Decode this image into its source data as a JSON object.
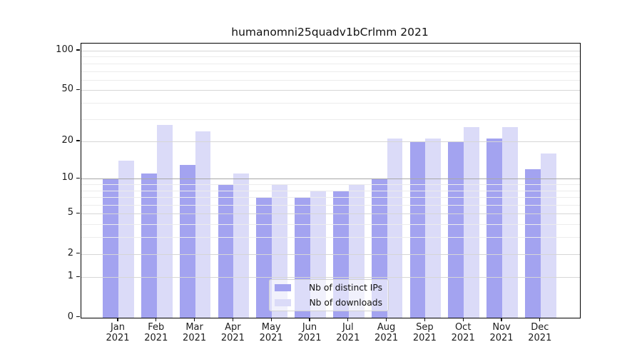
{
  "chart_data": {
    "type": "bar",
    "title": "humanomni25quadv1bCrlmm 2021",
    "categories": [
      "Jan 2021",
      "Feb 2021",
      "Mar 2021",
      "Apr 2021",
      "May 2021",
      "Jun 2021",
      "Jul 2021",
      "Aug 2021",
      "Sep 2021",
      "Oct 2021",
      "Nov 2021",
      "Dec 2021"
    ],
    "month_labels": [
      "Jan",
      "Feb",
      "Mar",
      "Apr",
      "May",
      "Jun",
      "Jul",
      "Aug",
      "Sep",
      "Oct",
      "Nov",
      "Dec"
    ],
    "year_label": "2021",
    "series": [
      {
        "name": "Nb of distinct IPs",
        "color": "#a3a3f0",
        "values": [
          10,
          11,
          13,
          9,
          7,
          7,
          8,
          10,
          20,
          20,
          21,
          12
        ]
      },
      {
        "name": "Nb of downloads",
        "color": "#dbdbf8",
        "values": [
          14,
          27,
          24,
          11,
          9,
          8,
          9,
          21,
          21,
          26,
          26,
          16
        ]
      }
    ],
    "yscale": "log1p",
    "yticks": [
      0,
      1,
      2,
      5,
      10,
      20,
      50,
      100
    ],
    "yticks_minor": [
      3,
      4,
      6,
      7,
      8,
      9,
      30,
      40,
      60,
      70,
      80,
      90
    ],
    "ylim": [
      0,
      113
    ],
    "grid": true,
    "legend_position": "bottom-center"
  },
  "colors": {
    "grid_major": "#d6d6d6",
    "grid_minor": "#ececec",
    "grid_emphasis_at_10": "#a8a8a8",
    "axis": "#000000",
    "background": "#ffffff"
  }
}
